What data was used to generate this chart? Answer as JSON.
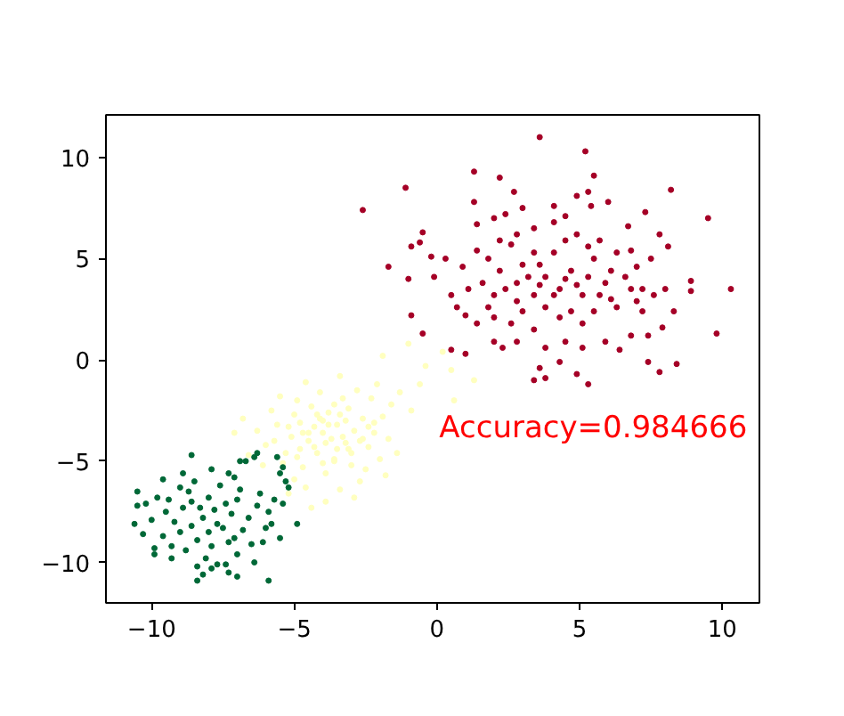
{
  "chart_data": {
    "type": "scatter",
    "xlim": [
      -11.6,
      11.3
    ],
    "ylim": [
      -12,
      12.1
    ],
    "xticks": [
      {
        "value": -10,
        "label": "−10"
      },
      {
        "value": -5,
        "label": "−5"
      },
      0,
      5,
      10
    ],
    "yticks": [
      {
        "value": -10,
        "label": "−10"
      },
      {
        "value": -5,
        "label": "−5"
      },
      0,
      5,
      10
    ],
    "grid": false,
    "marker": "circle",
    "annotations": [
      "Accuracy=0.984666"
    ],
    "series": [
      {
        "color": "#a50026",
        "x": [
          3.6,
          5.2,
          1.3,
          2.2,
          5.5,
          -1.1,
          2.7,
          -2.6,
          1.3,
          8.2,
          5.3,
          4.9,
          9.5,
          -1.7,
          10.3,
          9.8,
          3.4,
          3.8,
          5.3,
          4.9,
          3.6,
          4.3,
          7.8,
          8.4,
          7.4,
          0.5,
          1.0,
          -0.9,
          -0.5,
          -1.0,
          -0.9,
          -0.5,
          -0.6,
          8.9,
          8.9,
          8.3,
          7.9,
          7.4,
          7.8,
          8.1,
          7.3,
          6.7,
          1.4,
          2.0,
          6.0,
          4.1,
          5.4,
          3.0,
          2.4,
          -0.1,
          0.3,
          -0.2,
          0.5,
          1.0,
          2.0,
          2.3,
          2.8,
          5.9,
          6.8,
          6.4,
          7.2,
          7.6,
          8.0,
          7.0,
          7.5,
          6.8,
          1.8,
          2.2,
          2.6,
          3.0,
          3.4,
          3.8,
          4.3,
          4.7,
          5.1,
          5.5,
          5.9,
          6.3,
          6.8,
          3.4,
          3.8,
          3.0,
          2.6,
          3.4,
          4.3,
          5.1,
          4.7,
          5.5,
          2.0,
          1.6,
          2.4,
          2.8,
          3.2,
          3.6,
          4.1,
          4.5,
          4.9,
          5.3,
          5.7,
          6.3,
          6.1,
          6.6,
          7.2,
          7.0,
          4.1,
          3.4,
          2.8,
          4.5,
          2.2,
          1.4,
          0.9,
          0.7,
          1.4,
          2.0,
          4.1,
          4.5,
          3.6,
          4.9,
          5.3,
          5.7,
          6.1,
          4.5,
          3.8,
          5.1,
          2.8,
          1.8,
          1.1
        ],
        "values": [
          11.0,
          10.3,
          9.3,
          9.0,
          9.1,
          8.5,
          8.3,
          7.4,
          7.8,
          8.4,
          8.3,
          8.1,
          7.0,
          4.6,
          3.5,
          1.3,
          -1.0,
          -0.9,
          -1.2,
          -0.7,
          -0.4,
          -0.1,
          -0.6,
          -0.2,
          -0.1,
          0.5,
          0.3,
          2.2,
          1.3,
          4.0,
          5.6,
          6.3,
          5.8,
          3.9,
          3.4,
          2.4,
          1.6,
          1.2,
          6.2,
          5.6,
          7.3,
          6.6,
          6.7,
          7.0,
          7.8,
          7.6,
          7.6,
          7.5,
          7.2,
          4.1,
          5.0,
          5.1,
          3.2,
          2.2,
          0.9,
          0.6,
          0.9,
          0.9,
          1.2,
          0.5,
          2.4,
          3.2,
          3.5,
          4.6,
          5.0,
          5.4,
          5.0,
          4.4,
          5.7,
          4.7,
          5.3,
          4.1,
          3.5,
          4.4,
          3.2,
          5.0,
          3.8,
          2.6,
          3.5,
          3.2,
          2.6,
          2.4,
          1.8,
          1.5,
          2.1,
          1.8,
          2.4,
          2.4,
          3.2,
          3.8,
          3.5,
          3.8,
          4.1,
          4.7,
          5.3,
          5.9,
          6.2,
          5.6,
          5.9,
          5.3,
          4.4,
          4.1,
          3.5,
          2.9,
          6.8,
          6.5,
          6.2,
          7.1,
          5.9,
          5.4,
          4.6,
          2.6,
          1.8,
          2.1,
          3.2,
          4.0,
          3.7,
          3.7,
          4.1,
          3.2,
          3.0,
          0.9,
          0.6,
          0.6,
          2.9,
          2.6,
          3.5
        ]
      },
      {
        "color": "#ffffbf",
        "x": [
          -4.0,
          -3.5,
          -4.5,
          -3.2,
          -4.8,
          -3.8,
          -4.2,
          -2.9,
          -5.1,
          -3.6,
          -4.4,
          -2.6,
          -5.3,
          -3.0,
          -4.7,
          -2.4,
          -5.6,
          -3.3,
          -4.9,
          -2.2,
          -3.9,
          -5.0,
          -2.7,
          -6.0,
          -1.9,
          -3.1,
          -4.1,
          -5.8,
          -2.0,
          -3.4,
          -4.6,
          -6.3,
          -1.7,
          -2.8,
          -5.5,
          -3.7,
          -4.3,
          -3.5,
          -4.1,
          -2.5,
          -5.4,
          -6.1,
          -1.6,
          -2.3,
          -3.9,
          -2.9,
          -5.2,
          -6.6,
          -6.8,
          -7.1,
          -4.6,
          -3.4,
          -2.1,
          -1.3,
          -1.4,
          -1.8,
          -4.4,
          -3.0,
          -4.8,
          -3.6,
          -2.2,
          -5.0,
          -4.0,
          -3.2,
          -4.5,
          -1.0,
          -0.4,
          0.5,
          1.3,
          -0.6,
          0.2,
          -1.9,
          -0.9,
          0.6,
          -3.8,
          -4.3,
          -3.3,
          -4.7,
          -2.7,
          -5.2,
          -3.9,
          -4.2,
          -3.4,
          -2.6,
          -4.9,
          -3.1,
          -3.6,
          -4.0,
          -2.4,
          -5.7
        ],
        "values": [
          -3.6,
          -3.2,
          -4.0,
          -4.1,
          -3.1,
          -2.6,
          -4.6,
          -3.5,
          -3.8,
          -4.9,
          -2.3,
          -2.9,
          -4.6,
          -5.2,
          -5.3,
          -4.3,
          -3.2,
          -1.9,
          -2.0,
          -3.6,
          -5.6,
          -5.9,
          -6.0,
          -4.2,
          -2.8,
          -2.4,
          -1.6,
          -2.5,
          -4.9,
          -6.4,
          -6.3,
          -3.5,
          -3.9,
          -1.5,
          -1.8,
          -3.9,
          -3.3,
          -4.4,
          -2.9,
          -5.4,
          -5.1,
          -5.2,
          -2.2,
          -1.9,
          -7.0,
          -6.8,
          -6.6,
          -4.7,
          -2.9,
          -3.6,
          -1.1,
          -0.8,
          -1.2,
          -1.6,
          -4.6,
          -5.7,
          -7.3,
          -4.6,
          -4.4,
          -2.2,
          -3.1,
          -2.7,
          -5.1,
          -3.0,
          -3.6,
          0.8,
          -0.3,
          -0.5,
          -1.0,
          -1.2,
          0.4,
          0.2,
          -2.5,
          -2.0,
          -3.2,
          -4.3,
          -3.8,
          -3.6,
          -4.0,
          -3.3,
          -4.1,
          -2.7,
          -2.7,
          -3.9,
          -4.8,
          -4.4,
          -5.0,
          -3.0,
          -3.3,
          -4.0
        ]
      },
      {
        "color": "#006837",
        "x": [
          -8.2,
          -7.8,
          -8.6,
          -7.5,
          -8.9,
          -8.0,
          -8.4,
          -7.2,
          -9.2,
          -7.9,
          -8.7,
          -7.0,
          -9.5,
          -7.3,
          -8.8,
          -6.8,
          -9.6,
          -7.6,
          -9.0,
          -6.6,
          -8.1,
          -9.3,
          -7.0,
          -10.0,
          -6.9,
          -8.5,
          -9.8,
          -7.7,
          -10.2,
          -6.5,
          -8.3,
          -7.7,
          -8.6,
          -7.4,
          -9.0,
          -8.0,
          -7.1,
          -9.4,
          -8.4,
          -6.3,
          -6.0,
          -10.3,
          -9.9,
          -7.9,
          -8.9,
          -9.6,
          -6.2,
          -8.6,
          -6.3,
          -6.4,
          -6.7,
          -6.9,
          -7.3,
          -7.1,
          -5.6,
          -5.4,
          -5.5,
          -5.3,
          -5.2,
          -5.7,
          -5.9,
          -4.9,
          -5.4,
          -10.5,
          -10.5,
          -10.6,
          -9.9,
          -9.3,
          -8.4,
          -7.9,
          -7.0,
          -5.9,
          -6.4,
          -7.4,
          -6.1,
          -5.5,
          -5.8,
          -8.2,
          -7.3
        ],
        "values": [
          -7.8,
          -7.4,
          -8.2,
          -8.3,
          -7.3,
          -6.8,
          -8.9,
          -7.6,
          -8.0,
          -9.2,
          -6.5,
          -6.9,
          -7.5,
          -9.0,
          -9.4,
          -8.4,
          -8.7,
          -6.2,
          -6.3,
          -7.8,
          -9.8,
          -9.2,
          -9.6,
          -7.9,
          -6.4,
          -6.0,
          -6.8,
          -10.1,
          -7.1,
          -9.1,
          -7.3,
          -8.1,
          -7.0,
          -7.1,
          -8.5,
          -8.5,
          -8.8,
          -6.9,
          -10.2,
          -7.2,
          -8.3,
          -8.6,
          -9.6,
          -5.4,
          -5.6,
          -5.9,
          -6.6,
          -4.7,
          -4.6,
          -4.8,
          -5.0,
          -5.0,
          -5.6,
          -5.8,
          -4.8,
          -5.3,
          -5.6,
          -6.0,
          -6.3,
          -6.9,
          -7.5,
          -8.1,
          -7.1,
          -6.5,
          -7.2,
          -8.1,
          -9.3,
          -9.8,
          -10.9,
          -10.3,
          -10.7,
          -10.9,
          -10.0,
          -10.1,
          -9.0,
          -8.8,
          -8.1,
          -10.6,
          -10.5
        ]
      }
    ]
  }
}
